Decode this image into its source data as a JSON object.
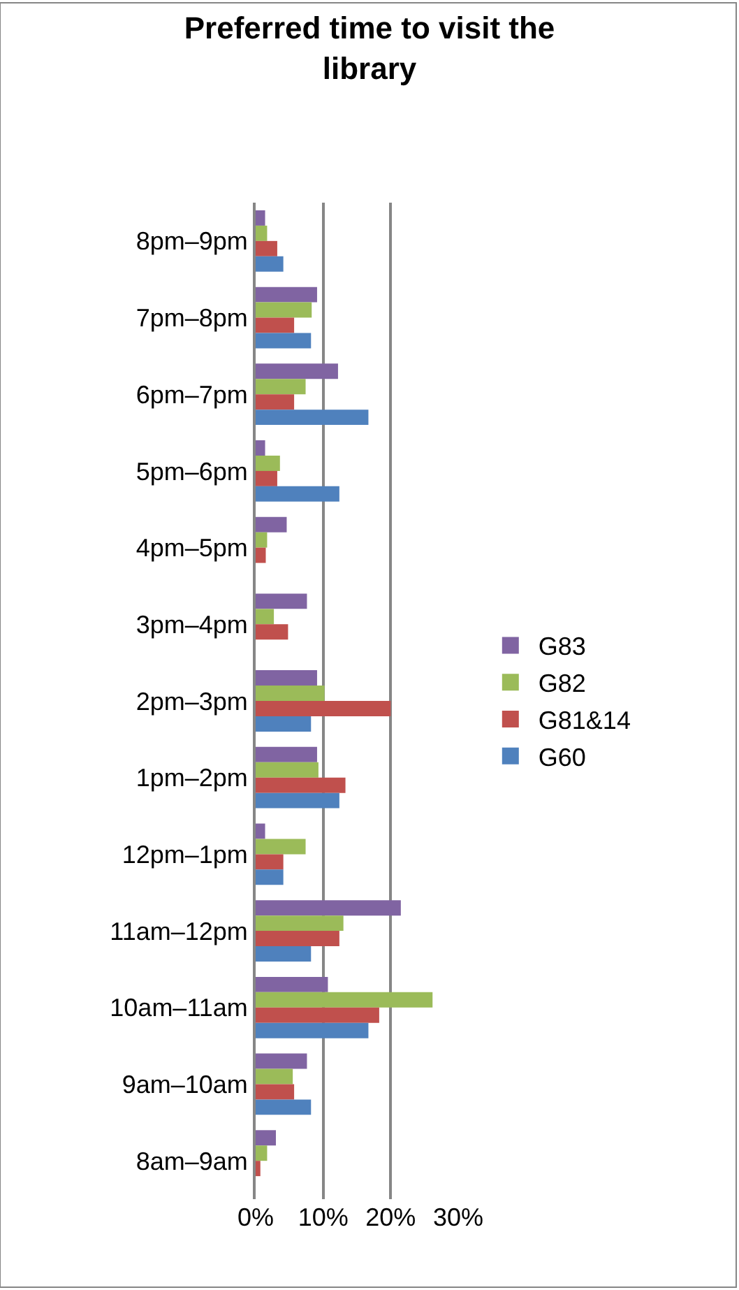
{
  "chart_data": {
    "type": "bar",
    "orientation": "horizontal",
    "title": "Preferred time to visit the library",
    "categories": [
      "8pm–9pm",
      "7pm–8pm",
      "6pm–7pm",
      "5pm–6pm",
      "4pm–5pm",
      "3pm–4pm",
      "2pm–3pm",
      "1pm–2pm",
      "12pm–1pm",
      "11am–12pm",
      "10am–11am",
      "9am–10am",
      "8am–9am"
    ],
    "series": [
      {
        "name": "G83",
        "color": "#8064a2",
        "values": [
          1.4,
          9.1,
          12.2,
          1.4,
          4.6,
          7.6,
          9.1,
          9.1,
          1.4,
          21.5,
          10.7,
          7.6,
          3.0
        ]
      },
      {
        "name": "G82",
        "color": "#9bbb59",
        "values": [
          1.7,
          8.3,
          7.4,
          3.6,
          1.7,
          2.7,
          10.2,
          9.3,
          7.4,
          13.0,
          26.2,
          5.5,
          1.7
        ]
      },
      {
        "name": "G81&14",
        "color": "#c0504d",
        "values": [
          3.2,
          5.7,
          5.7,
          3.2,
          1.5,
          4.8,
          20.0,
          13.3,
          4.1,
          12.4,
          18.3,
          5.7,
          0.7
        ]
      },
      {
        "name": "G60",
        "color": "#4f81bd",
        "values": [
          4.1,
          8.2,
          16.7,
          12.4,
          0,
          0,
          8.2,
          12.4,
          4.1,
          8.2,
          16.7,
          8.2,
          0
        ]
      }
    ],
    "xlim": [
      0,
      30
    ],
    "xticks": [
      {
        "value": 0,
        "label": "0%"
      },
      {
        "value": 10,
        "label": "10%"
      },
      {
        "value": 20,
        "label": "20%"
      },
      {
        "value": 30,
        "label": "30%"
      }
    ],
    "grid": "x",
    "legend": "right"
  }
}
